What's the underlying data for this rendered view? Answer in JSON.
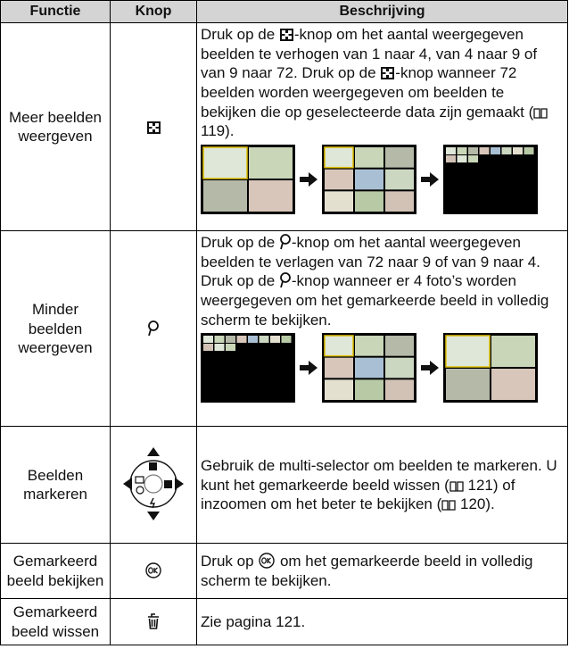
{
  "header": {
    "columns": [
      "Functie",
      "Knop",
      "Beschrijving"
    ]
  },
  "table": {
    "rows": [
      {
        "function": "Meer beelden weergeven",
        "description": [
          "Druk op de ",
          "-knop om het aantal weergegeven beelden te verhogen van 1 naar 4, van 4 naar 9 of van 9 naar 72. Druk op de ",
          "-knop wanneer 72 beelden worden weergegeven om beelden te bekijken die op geselecteerde data zijn gemaakt (",
          " 119)."
        ]
      },
      {
        "function": "Minder beelden weergeven",
        "description": [
          "Druk op de ",
          "-knop om het aantal weergegeven beelden te verlagen van 72 naar 9 of van 9 naar 4. Druk op de ",
          "-knop wanneer er 4 foto’s worden weergegeven om het gemarkeerde beeld in volledig scherm te bekijken."
        ]
      },
      {
        "function": "Beelden markeren",
        "description": [
          "Gebruik de multi-selector om beelden te markeren. U kunt het gemarkeerde beeld wissen (",
          " 121) of inzoomen om het beter te bekijken (",
          " 120)."
        ]
      },
      {
        "function": "Gemarkeerd beeld bekijken",
        "description": [
          "Druk op ",
          " om het gemarkeerde beeld in volledig scherm te bekijken."
        ]
      },
      {
        "function": "Gemarkeerd beeld wissen",
        "description": [
          "Zie pagina 121."
        ]
      }
    ]
  }
}
